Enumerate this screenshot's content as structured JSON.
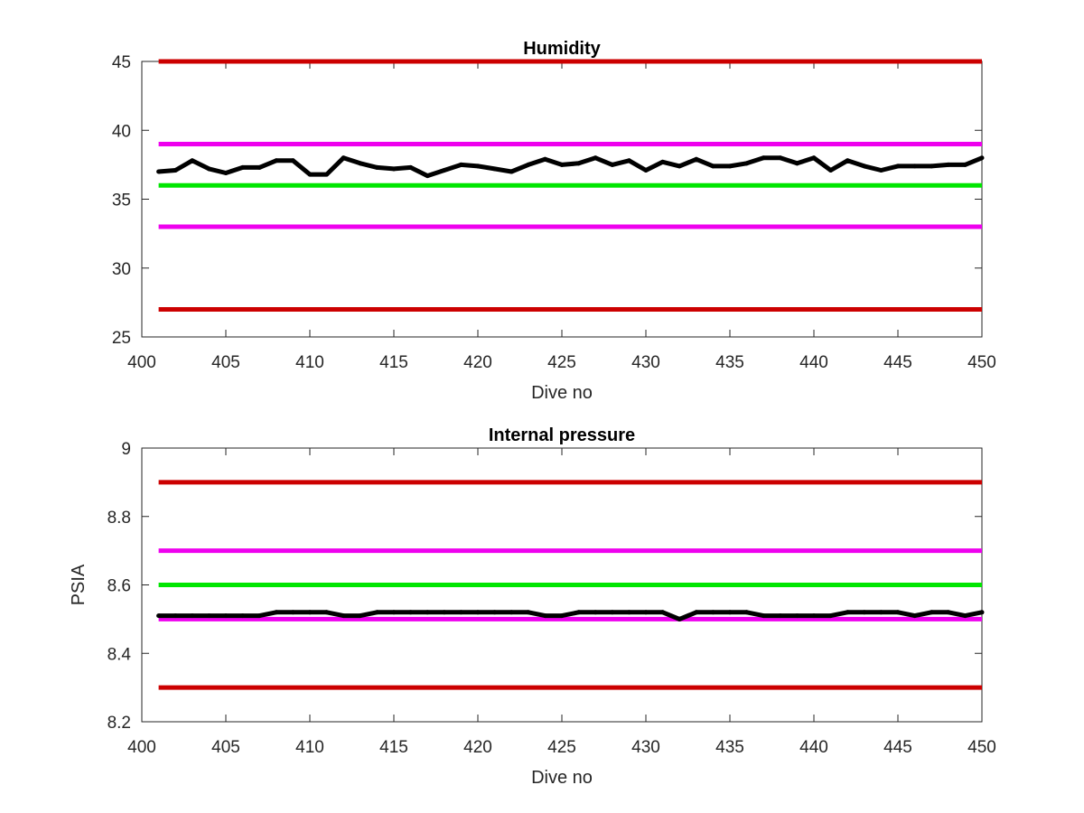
{
  "chart_data": [
    {
      "type": "line",
      "title": "Humidity",
      "xlabel": "Dive no",
      "ylabel": "",
      "xlim": [
        400,
        450
      ],
      "ylim": [
        25,
        45
      ],
      "xticks": [
        400,
        405,
        410,
        415,
        420,
        425,
        430,
        435,
        440,
        445,
        450
      ],
      "yticks": [
        25,
        30,
        35,
        40,
        45
      ],
      "ytick_labels": [
        "25",
        "30",
        "35",
        "40",
        "45"
      ],
      "grid": false,
      "limit_lines": [
        {
          "y": 45,
          "color": "#cc0000"
        },
        {
          "y": 39,
          "color": "#ee00ee"
        },
        {
          "y": 36,
          "color": "#00e600"
        },
        {
          "y": 33,
          "color": "#ee00ee"
        },
        {
          "y": 27,
          "color": "#cc0000"
        }
      ],
      "series": [
        {
          "color": "#000000",
          "x": [
            401,
            402,
            403,
            404,
            405,
            406,
            407,
            408,
            409,
            410,
            411,
            412,
            413,
            414,
            415,
            416,
            417,
            418,
            419,
            420,
            421,
            422,
            423,
            424,
            425,
            426,
            427,
            428,
            429,
            430,
            431,
            432,
            433,
            434,
            435,
            436,
            437,
            438,
            439,
            440,
            441,
            442,
            443,
            444,
            445,
            446,
            447,
            448,
            449,
            450
          ],
          "values": [
            37.0,
            37.1,
            37.8,
            37.2,
            36.9,
            37.3,
            37.3,
            37.8,
            37.8,
            36.8,
            36.8,
            38.0,
            37.6,
            37.3,
            37.2,
            37.3,
            36.7,
            37.1,
            37.5,
            37.4,
            37.2,
            37.0,
            37.5,
            37.9,
            37.5,
            37.6,
            38.0,
            37.5,
            37.8,
            37.1,
            37.7,
            37.4,
            37.9,
            37.4,
            37.4,
            37.6,
            38.0,
            38.0,
            37.6,
            38.0,
            37.1,
            37.8,
            37.4,
            37.1,
            37.4,
            37.4,
            37.4,
            37.5,
            37.5,
            38.0
          ]
        }
      ]
    },
    {
      "type": "line",
      "title": "Internal pressure",
      "xlabel": "Dive no",
      "ylabel": "PSIA",
      "xlim": [
        400,
        450
      ],
      "ylim": [
        8.2,
        9.0
      ],
      "xticks": [
        400,
        405,
        410,
        415,
        420,
        425,
        430,
        435,
        440,
        445,
        450
      ],
      "yticks": [
        8.2,
        8.4,
        8.6,
        8.8,
        9.0
      ],
      "ytick_labels": [
        "8.2",
        "8.4",
        "8.6",
        "8.8",
        "9"
      ],
      "grid": false,
      "limit_lines": [
        {
          "y": 8.9,
          "color": "#cc0000"
        },
        {
          "y": 8.7,
          "color": "#ee00ee"
        },
        {
          "y": 8.6,
          "color": "#00e600"
        },
        {
          "y": 8.5,
          "color": "#ee00ee"
        },
        {
          "y": 8.3,
          "color": "#cc0000"
        }
      ],
      "series": [
        {
          "color": "#000000",
          "x": [
            401,
            402,
            403,
            404,
            405,
            406,
            407,
            408,
            409,
            410,
            411,
            412,
            413,
            414,
            415,
            416,
            417,
            418,
            419,
            420,
            421,
            422,
            423,
            424,
            425,
            426,
            427,
            428,
            429,
            430,
            431,
            432,
            433,
            434,
            435,
            436,
            437,
            438,
            439,
            440,
            441,
            442,
            443,
            444,
            445,
            446,
            447,
            448,
            449,
            450
          ],
          "values": [
            8.51,
            8.51,
            8.51,
            8.51,
            8.51,
            8.51,
            8.51,
            8.52,
            8.52,
            8.52,
            8.52,
            8.51,
            8.51,
            8.52,
            8.52,
            8.52,
            8.52,
            8.52,
            8.52,
            8.52,
            8.52,
            8.52,
            8.52,
            8.51,
            8.51,
            8.52,
            8.52,
            8.52,
            8.52,
            8.52,
            8.52,
            8.5,
            8.52,
            8.52,
            8.52,
            8.52,
            8.51,
            8.51,
            8.51,
            8.51,
            8.51,
            8.52,
            8.52,
            8.52,
            8.52,
            8.51,
            8.52,
            8.52,
            8.51,
            8.52
          ]
        }
      ]
    }
  ]
}
